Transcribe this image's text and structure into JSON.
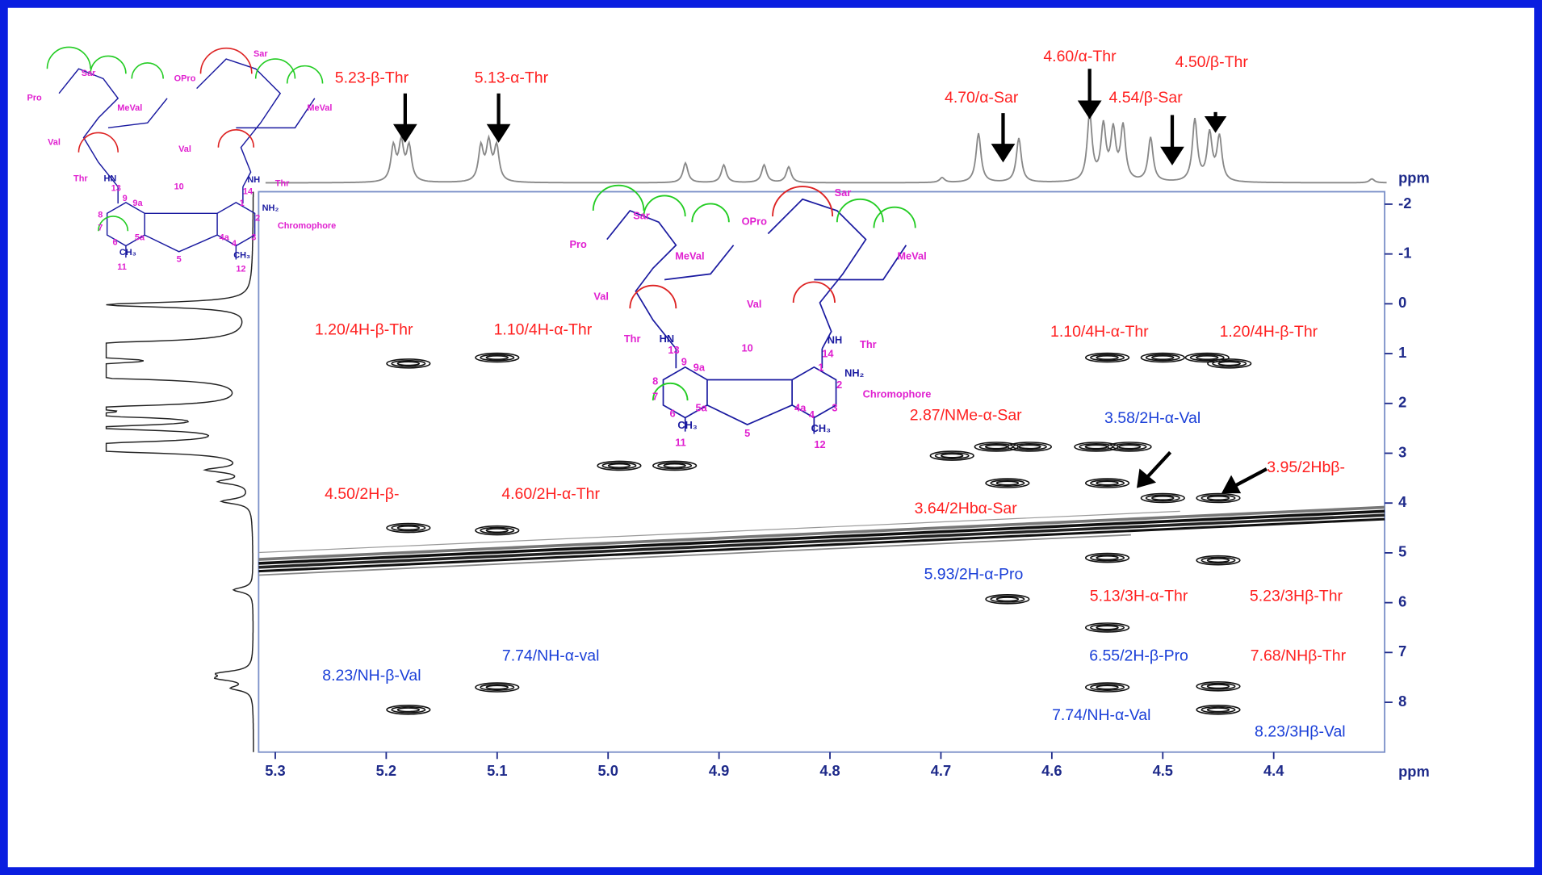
{
  "chart_data": {
    "type": "nmr2d",
    "xlabel": "ppm",
    "ylabel": "ppm",
    "xlim": [
      5.315,
      4.3
    ],
    "ylim": [
      -2.25,
      9.0
    ],
    "xticks": [
      5.3,
      5.2,
      5.1,
      {
        "value": 5,
        "label": "5.0"
      },
      4.9,
      4.8,
      4.7,
      4.6,
      4.5,
      4.4
    ],
    "yticks": [
      -2,
      -1,
      0,
      1,
      2,
      3,
      4,
      5,
      6,
      7,
      8
    ],
    "peaks": [
      {
        "x": 5.18,
        "y": 1.2
      },
      {
        "x": 5.1,
        "y": 1.08
      },
      {
        "x": 4.55,
        "y": 1.08
      },
      {
        "x": 4.5,
        "y": 1.08
      },
      {
        "x": 4.46,
        "y": 1.08
      },
      {
        "x": 4.44,
        "y": 1.2
      },
      {
        "x": 4.99,
        "y": 3.25
      },
      {
        "x": 4.94,
        "y": 3.25
      },
      {
        "x": 4.65,
        "y": 2.87
      },
      {
        "x": 4.62,
        "y": 2.87
      },
      {
        "x": 4.56,
        "y": 2.87
      },
      {
        "x": 4.53,
        "y": 2.87
      },
      {
        "x": 4.69,
        "y": 3.05
      },
      {
        "x": 4.64,
        "y": 3.6
      },
      {
        "x": 4.55,
        "y": 3.6
      },
      {
        "x": 4.5,
        "y": 3.9
      },
      {
        "x": 4.45,
        "y": 3.9
      },
      {
        "x": 5.18,
        "y": 4.5
      },
      {
        "x": 5.1,
        "y": 4.55
      },
      {
        "x": 4.64,
        "y": 5.93
      },
      {
        "x": 4.55,
        "y": 5.1
      },
      {
        "x": 4.45,
        "y": 5.15
      },
      {
        "x": 4.55,
        "y": 6.5
      },
      {
        "x": 4.55,
        "y": 7.7
      },
      {
        "x": 4.45,
        "y": 7.68
      },
      {
        "x": 4.45,
        "y": 8.15
      },
      {
        "x": 5.18,
        "y": 8.15
      },
      {
        "x": 5.1,
        "y": 7.7
      }
    ],
    "annotations": [
      "5.23-β-Thr",
      "5.13-α-Thr",
      "4.70/α-Sar",
      "4.60/α-Thr",
      "4.54/β-Sar",
      "4.50/β-Thr",
      "1.20/4H-β-Thr",
      "1.10/4H-α-Thr",
      "1.10/4H-α-Thr",
      "1.20/4H-β-Thr",
      "2.87/NMe-α-Sar",
      "3.58/2H-α-Val",
      "3.95/2Hbβ-",
      "4.50/2H-β-",
      "4.60/2H-α-Thr",
      "3.64/2Hbα-Sar",
      "5.93/2H-α-Pro",
      "5.13/3H-α-Thr",
      "5.23/3Hβ-Thr",
      "6.55/2H-β-Pro",
      "7.68/NHβ-Thr",
      "7.74/NH-α-val",
      "8.23/NH-β-Val",
      "7.74/NH-α-Val",
      "8.23/3Hβ-Val"
    ],
    "structures": [
      {
        "labels": [
          "Sar",
          "Pro",
          "MeVal",
          "Val",
          "Thr",
          "Sar",
          "OPro",
          "MeVal",
          "Val",
          "Thr",
          "Chromophore",
          "13",
          "10",
          "14",
          "9",
          "9a",
          "1",
          "2",
          "8",
          "7",
          "5a",
          "4a",
          "3",
          "6",
          "5",
          "4",
          "11",
          "12",
          "NH₂",
          "CH₃",
          "CH₃",
          "HN",
          "NH"
        ]
      },
      {
        "labels": [
          "Sar",
          "Pro",
          "MeVal",
          "Val",
          "Thr",
          "Sar",
          "OPro",
          "MeVal",
          "Val",
          "Thr",
          "Chromophore",
          "13",
          "10",
          "14",
          "9",
          "9a",
          "1",
          "2",
          "8",
          "7",
          "5a",
          "4a",
          "3",
          "6",
          "5",
          "4",
          "11",
          "12",
          "NH₂",
          "CH₃",
          "CH₃",
          "HN",
          "NH"
        ]
      }
    ]
  }
}
